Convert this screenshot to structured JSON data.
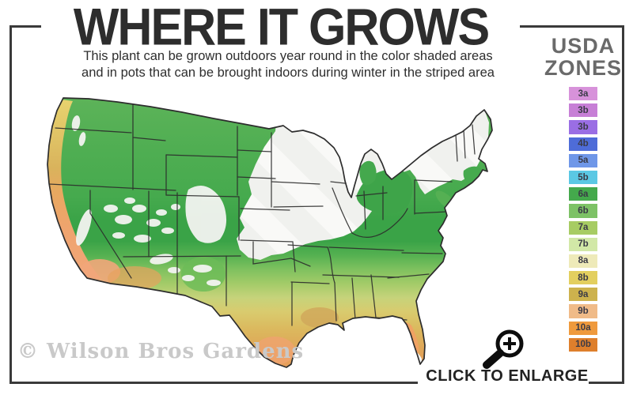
{
  "title": "WHERE IT GROWS",
  "subtitle": {
    "line1": "This plant can be grown outdoors year round in the color shaded areas",
    "line2": "and in pots that can be brought indoors during winter in the striped area"
  },
  "legend": {
    "title_line1": "USDA",
    "title_line2": "ZONES",
    "zones": [
      {
        "label": "3a",
        "color": "#d792da"
      },
      {
        "label": "3b",
        "color": "#c77fd6"
      },
      {
        "label": "3b",
        "color": "#9a6ee4"
      },
      {
        "label": "4b",
        "color": "#4e6cd8"
      },
      {
        "label": "5a",
        "color": "#6f97e8"
      },
      {
        "label": "5b",
        "color": "#5bc8e4"
      },
      {
        "label": "6a",
        "color": "#44a94c"
      },
      {
        "label": "6b",
        "color": "#7dc266"
      },
      {
        "label": "7a",
        "color": "#a7cc63"
      },
      {
        "label": "7b",
        "color": "#d2e8a7"
      },
      {
        "label": "8a",
        "color": "#eeeab9"
      },
      {
        "label": "8b",
        "color": "#e3cf5f"
      },
      {
        "label": "9a",
        "color": "#cdb24d"
      },
      {
        "label": "9b",
        "color": "#f0bb88"
      },
      {
        "label": "10a",
        "color": "#ef9a3d"
      },
      {
        "label": "10b",
        "color": "#de7f2c"
      }
    ]
  },
  "watermark": "© Wilson Bros Gardens",
  "enlarge": {
    "label": "CLICK TO ENLARGE",
    "icon": "magnifier-plus-icon"
  },
  "frame_color": "#3a3a3a"
}
